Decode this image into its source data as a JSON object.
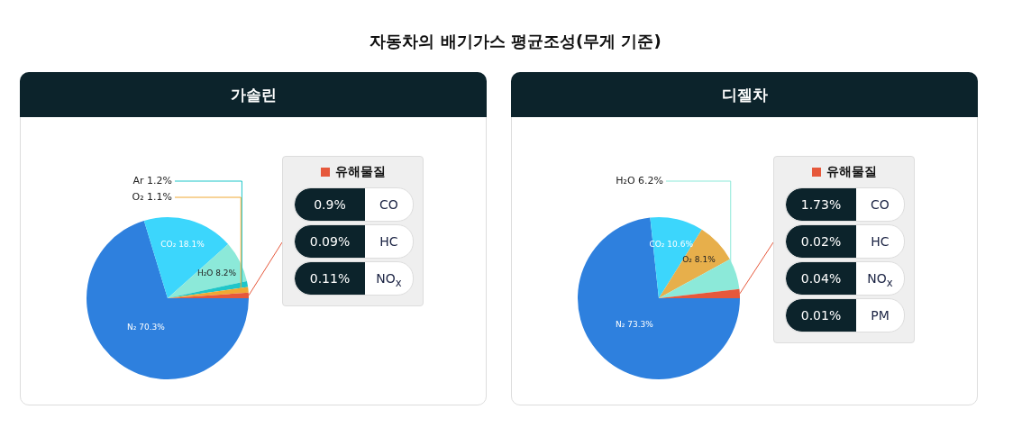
{
  "chart_data": [
    {
      "type": "pie",
      "title": "자동차의 배기가스 평균조성(무게 기준)",
      "subtitle": "가솔린",
      "categories": [
        "N₂",
        "CO₂",
        "H₂O",
        "Ar",
        "O₂",
        "유해물질"
      ],
      "values": [
        70.3,
        18.1,
        8.2,
        1.2,
        1.1,
        1.1
      ],
      "value_labels": [
        "70.3%",
        "18.1%",
        "8.2%",
        "1.2%",
        "1.1%",
        null
      ],
      "colors": [
        "#2e80de",
        "#3cd6fc",
        "#8ce9d9",
        "#1fc6c9",
        "#f0a833",
        "#e6583b"
      ],
      "annotations": [
        "0.9%",
        "CO",
        "0.09%",
        "HC",
        "0.11%",
        "NO$_{x}$"
      ],
      "legend": "right"
    },
    {
      "type": "pie",
      "subtitle": "디젤차",
      "categories": [
        "N₂",
        "CO₂",
        "O₂",
        "H₂O",
        "유해물질"
      ],
      "values": [
        73.3,
        10.6,
        8.1,
        6.2,
        1.8
      ],
      "value_labels": [
        "73.3%",
        "10.6%",
        "8.1%",
        "6.2%",
        null
      ],
      "colors": [
        "#2e80de",
        "#3cd6fc",
        "#e7af4b",
        "#8ce9d9",
        "#e6583b"
      ],
      "annotations": [
        "1.73%",
        "CO",
        "0.02%",
        "HC",
        "0.04%",
        "NO$_{x}$",
        "0.01%",
        "PM"
      ],
      "legend": "right"
    }
  ]
}
